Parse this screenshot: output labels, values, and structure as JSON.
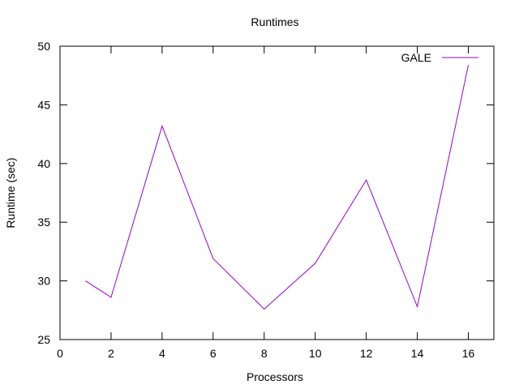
{
  "chart_data": {
    "type": "line",
    "title": "Runtimes",
    "xlabel": "Processors",
    "ylabel": "Runtime (sec)",
    "xlim": [
      0,
      17
    ],
    "ylim": [
      25,
      50
    ],
    "xticks": [
      0,
      2,
      4,
      6,
      8,
      10,
      12,
      14,
      16
    ],
    "yticks": [
      25,
      30,
      35,
      40,
      45,
      50
    ],
    "grid": false,
    "legend_position": "top-right",
    "series": [
      {
        "name": "GALE",
        "color": "#9400d3",
        "x": [
          1,
          2,
          4,
          6,
          8,
          10,
          12,
          14,
          16
        ],
        "y": [
          30.0,
          28.6,
          43.2,
          31.9,
          27.6,
          31.5,
          38.6,
          27.8,
          48.4
        ]
      }
    ]
  }
}
